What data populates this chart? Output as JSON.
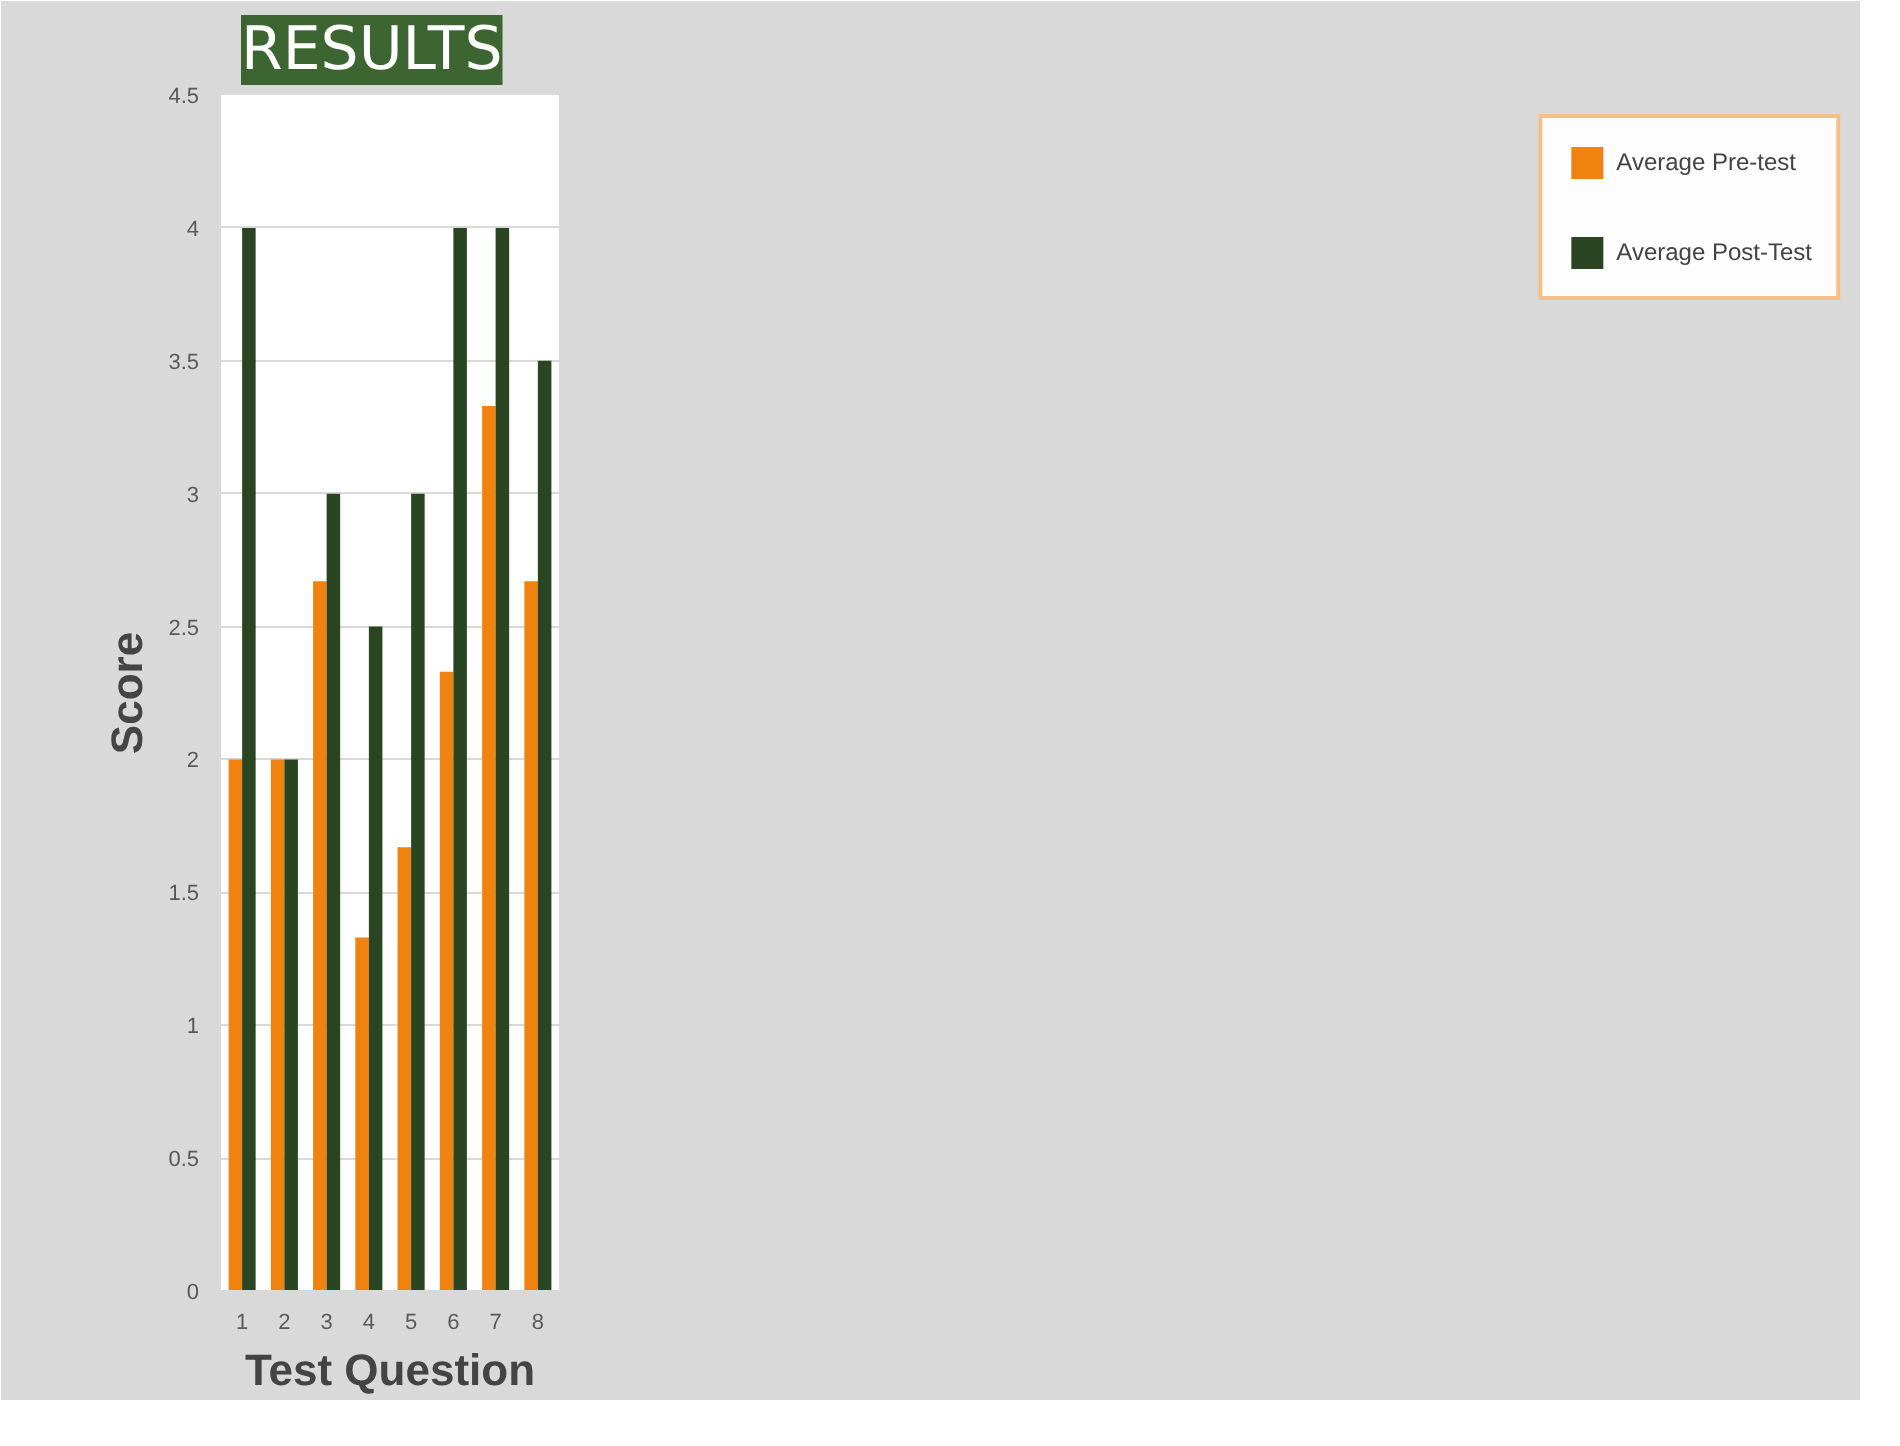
{
  "chart_data": {
    "type": "bar",
    "title": "RESULTS",
    "xlabel": "Test Question",
    "ylabel": "Score",
    "categories": [
      "1",
      "2",
      "3",
      "4",
      "5",
      "6",
      "7",
      "8"
    ],
    "series": [
      {
        "name": "Average Pre-test",
        "color": "#f0820f",
        "values": [
          2,
          2,
          2.67,
          1.33,
          1.67,
          2.33,
          3.33,
          2.67
        ]
      },
      {
        "name": "Average Post-Test",
        "color": "#294522",
        "values": [
          4,
          2,
          3,
          2.5,
          3,
          4,
          4,
          3.5
        ]
      }
    ],
    "ylim": [
      0,
      4.5
    ],
    "yticks": [
      0,
      0.5,
      1,
      1.5,
      2,
      2.5,
      3,
      3.5,
      4,
      4.5
    ],
    "grid": "y",
    "legend": "right"
  }
}
